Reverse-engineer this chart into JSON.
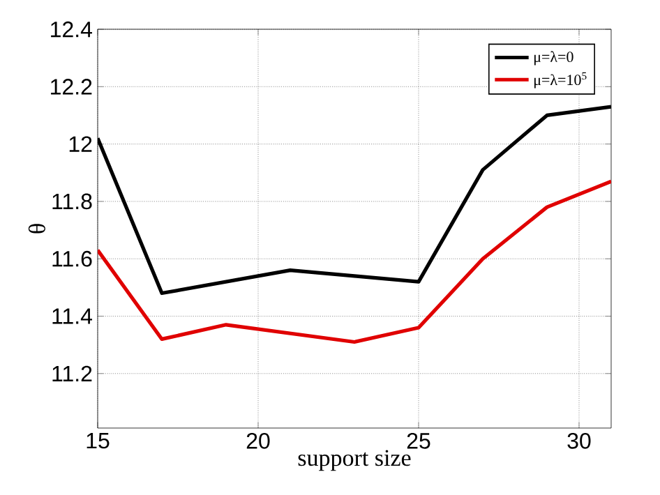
{
  "chart_data": {
    "type": "line",
    "xlabel": "support size",
    "ylabel": "θ",
    "x": [
      15,
      17,
      19,
      21,
      23,
      25,
      27,
      29,
      31
    ],
    "series": [
      {
        "name": "μ=λ=0",
        "color": "#000000",
        "values": [
          12.02,
          11.48,
          11.52,
          11.56,
          11.54,
          11.52,
          11.91,
          12.1,
          12.13
        ]
      },
      {
        "name": "μ=λ=10$^{5}$",
        "color": "#e00000",
        "values": [
          11.63,
          11.32,
          11.37,
          11.34,
          11.31,
          11.36,
          11.6,
          11.78,
          11.87
        ]
      }
    ],
    "xlim": [
      15,
      31
    ],
    "xticks": [
      15,
      20,
      25,
      30
    ],
    "ylim": [
      11.01,
      12.4
    ],
    "yticks": [
      11.2,
      11.4,
      11.6,
      11.8,
      12,
      12.2,
      12.4
    ],
    "grid": true,
    "legend": "top right",
    "line_style": "solid",
    "marker": "none"
  }
}
